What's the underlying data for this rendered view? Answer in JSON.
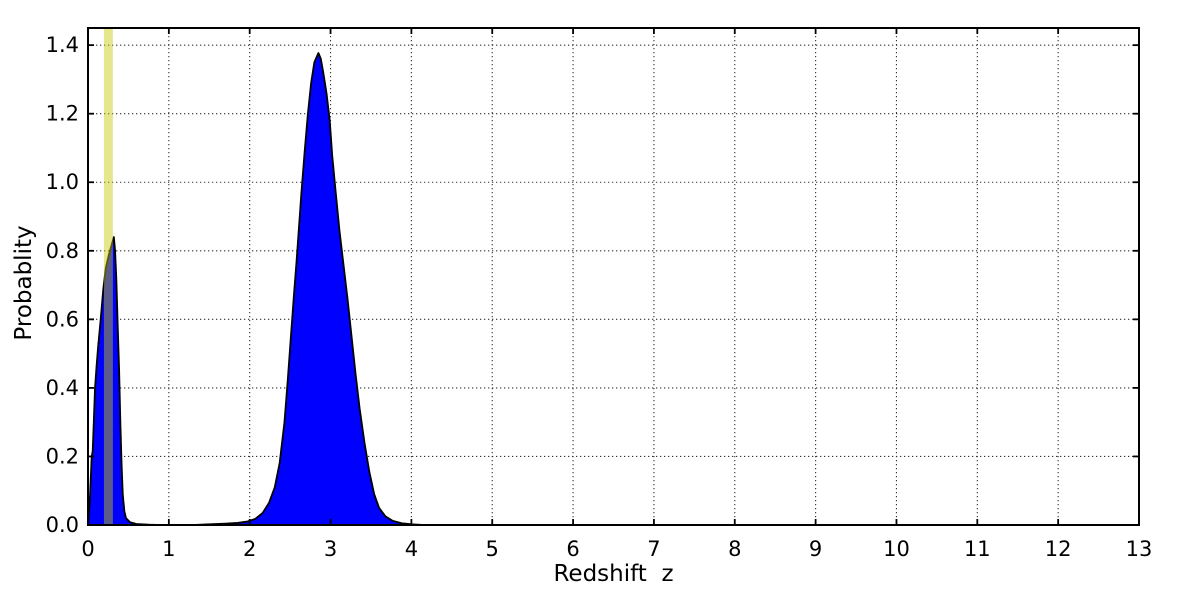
{
  "figure": {
    "background": "#ffffff",
    "title": ""
  },
  "chart_data": {
    "type": "area",
    "title": "",
    "xlabel": "Redshift  z",
    "ylabel": "Probablity",
    "xlim": [
      0,
      13
    ],
    "ylim": [
      0,
      1.45
    ],
    "grid": "dotted",
    "legend": "none",
    "xticks": [
      0,
      1,
      2,
      3,
      4,
      5,
      6,
      7,
      8,
      9,
      10,
      11,
      12,
      13
    ],
    "xtick_labels": [
      "0",
      "1",
      "2",
      "3",
      "4",
      "5",
      "6",
      "7",
      "8",
      "9",
      "10",
      "11",
      "12",
      "13"
    ],
    "yticks": [
      0.0,
      0.2,
      0.4,
      0.6,
      0.8,
      1.0,
      1.2,
      1.4
    ],
    "ytick_labels": [
      "0.0",
      "0.2",
      "0.4",
      "0.6",
      "0.8",
      "1.0",
      "1.2",
      "1.4"
    ],
    "colors": {
      "curve_fill": "#0000ff",
      "curve_stroke": "#000000",
      "band_fill": "#c8c800",
      "band_alpha": 0.45,
      "grid_color": "#333333",
      "spine_color": "#000000"
    },
    "peaks": [
      {
        "z": 0.32,
        "p": 0.84
      },
      {
        "z": 2.85,
        "p": 1.38
      }
    ],
    "annotations": [
      {
        "type": "vspan",
        "name": "specz-marker-band",
        "x0": 0.197,
        "x1": 0.308
      }
    ],
    "series": [
      {
        "name": "redshift-probability-pdf",
        "points": [
          [
            0.0,
            0.0
          ],
          [
            0.02,
            0.06
          ],
          [
            0.035,
            0.14
          ],
          [
            0.046,
            0.2
          ],
          [
            0.058,
            0.215
          ],
          [
            0.07,
            0.29
          ],
          [
            0.087,
            0.4
          ],
          [
            0.105,
            0.46
          ],
          [
            0.125,
            0.52
          ],
          [
            0.157,
            0.6
          ],
          [
            0.19,
            0.69
          ],
          [
            0.22,
            0.75
          ],
          [
            0.26,
            0.79
          ],
          [
            0.29,
            0.815
          ],
          [
            0.31,
            0.832
          ],
          [
            0.32,
            0.84
          ],
          [
            0.335,
            0.8
          ],
          [
            0.35,
            0.72
          ],
          [
            0.365,
            0.6
          ],
          [
            0.385,
            0.45
          ],
          [
            0.4,
            0.3
          ],
          [
            0.415,
            0.18
          ],
          [
            0.43,
            0.09
          ],
          [
            0.45,
            0.04
          ],
          [
            0.47,
            0.02
          ],
          [
            0.52,
            0.008
          ],
          [
            0.6,
            0.003
          ],
          [
            0.75,
            0.001
          ],
          [
            0.9,
            0.0
          ],
          [
            1.1,
            0.0
          ],
          [
            1.3,
            0.0
          ],
          [
            1.5,
            0.002
          ],
          [
            1.7,
            0.004
          ],
          [
            1.85,
            0.006
          ],
          [
            1.97,
            0.01
          ],
          [
            2.07,
            0.018
          ],
          [
            2.16,
            0.035
          ],
          [
            2.24,
            0.065
          ],
          [
            2.31,
            0.11
          ],
          [
            2.37,
            0.18
          ],
          [
            2.43,
            0.3
          ],
          [
            2.47,
            0.42
          ],
          [
            2.51,
            0.55
          ],
          [
            2.55,
            0.68
          ],
          [
            2.58,
            0.77
          ],
          [
            2.61,
            0.87
          ],
          [
            2.64,
            0.97
          ],
          [
            2.68,
            1.09
          ],
          [
            2.72,
            1.2
          ],
          [
            2.76,
            1.29
          ],
          [
            2.8,
            1.35
          ],
          [
            2.85,
            1.377
          ],
          [
            2.88,
            1.36
          ],
          [
            2.91,
            1.32
          ],
          [
            2.95,
            1.26
          ],
          [
            2.99,
            1.18
          ],
          [
            3.02,
            1.08
          ],
          [
            3.06,
            0.98
          ],
          [
            3.11,
            0.86
          ],
          [
            3.16,
            0.76
          ],
          [
            3.21,
            0.66
          ],
          [
            3.26,
            0.55
          ],
          [
            3.31,
            0.44
          ],
          [
            3.36,
            0.34
          ],
          [
            3.42,
            0.24
          ],
          [
            3.48,
            0.155
          ],
          [
            3.54,
            0.09
          ],
          [
            3.6,
            0.05
          ],
          [
            3.68,
            0.025
          ],
          [
            3.77,
            0.012
          ],
          [
            3.88,
            0.005
          ],
          [
            4.0,
            0.002
          ],
          [
            4.15,
            0.0
          ],
          [
            4.5,
            0.0
          ],
          [
            5.0,
            0.0
          ],
          [
            6.0,
            0.0
          ],
          [
            7.0,
            0.0
          ],
          [
            8.0,
            0.0
          ],
          [
            9.0,
            0.0
          ],
          [
            10.0,
            0.0
          ],
          [
            11.0,
            0.0
          ],
          [
            12.0,
            0.0
          ],
          [
            13.0,
            0.0
          ]
        ]
      }
    ]
  }
}
